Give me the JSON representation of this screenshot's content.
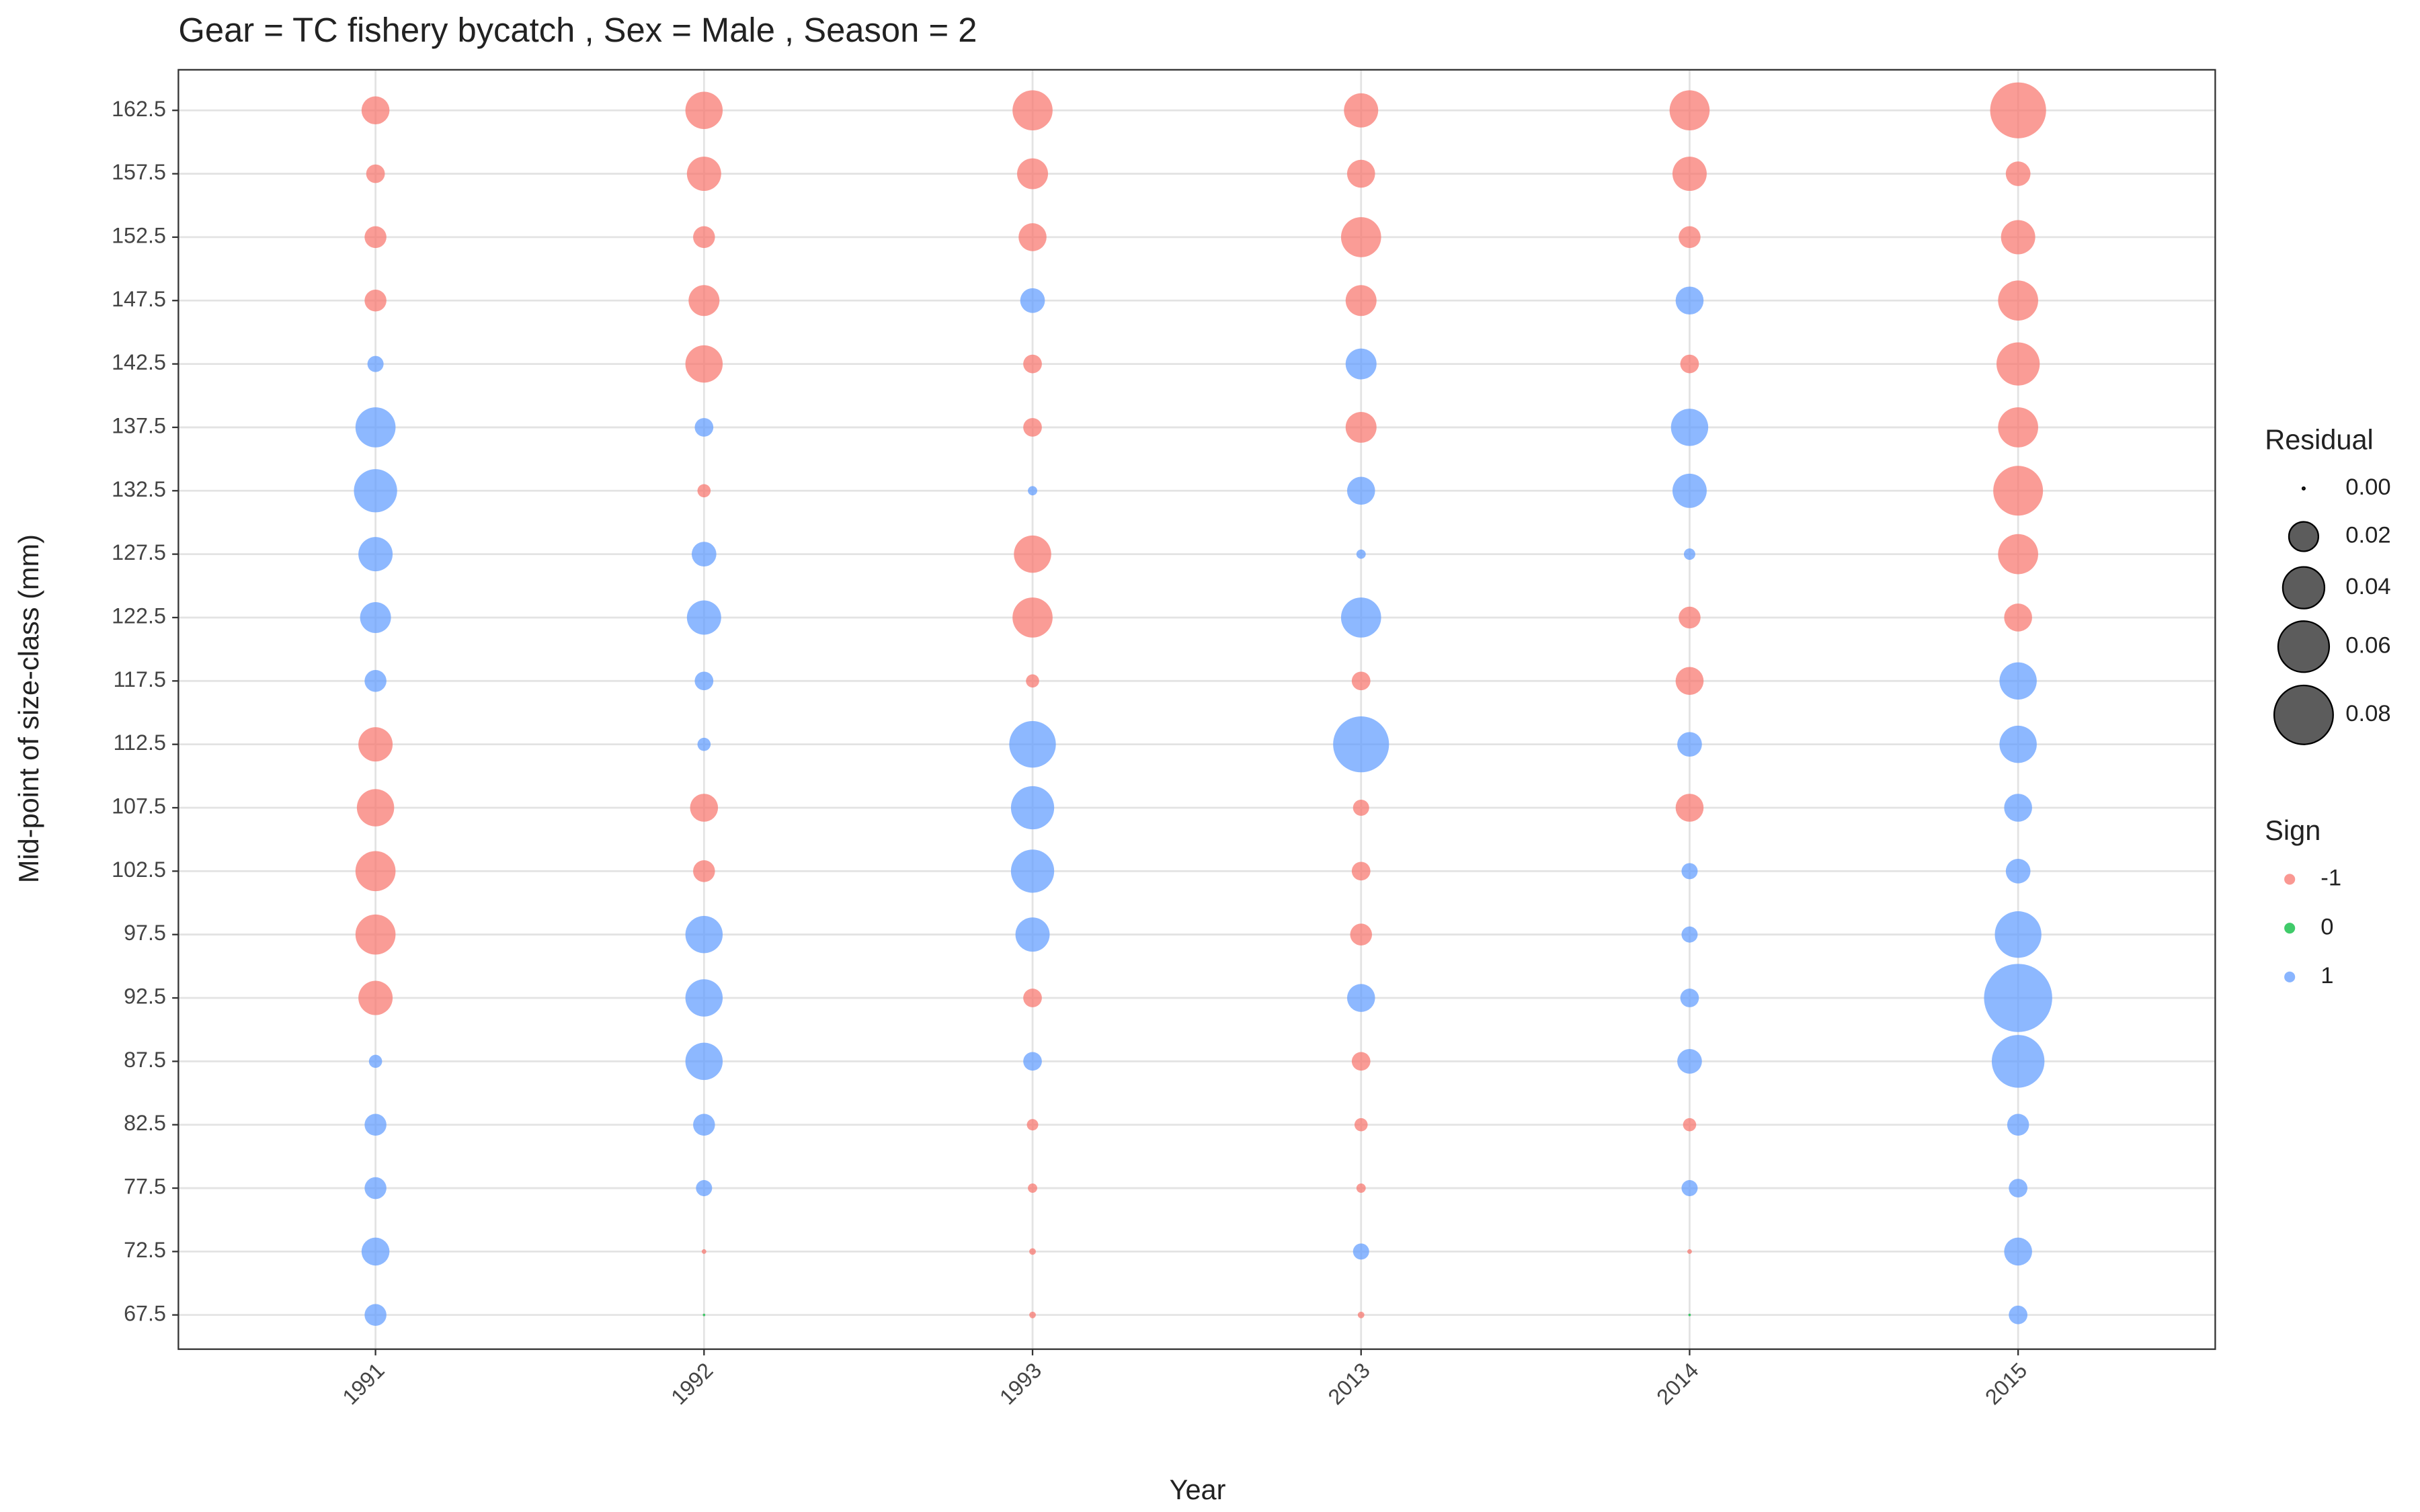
{
  "chart_data": {
    "type": "bubble",
    "title": "Gear = TC fishery bycatch , Sex = Male , Season = 2",
    "x_label": "Year",
    "y_label": "Mid-point of size-class (mm)",
    "categories": [
      "1991",
      "1992",
      "1993",
      "2013",
      "2014",
      "2015"
    ],
    "size_classes": [
      67.5,
      72.5,
      77.5,
      82.5,
      87.5,
      92.5,
      97.5,
      102.5,
      107.5,
      112.5,
      117.5,
      122.5,
      127.5,
      132.5,
      137.5,
      142.5,
      147.5,
      152.5,
      157.5,
      162.5
    ],
    "ylim": [
      64.8,
      165.7
    ],
    "yticks": [
      67.5,
      72.5,
      77.5,
      82.5,
      87.5,
      92.5,
      97.5,
      102.5,
      107.5,
      112.5,
      117.5,
      122.5,
      127.5,
      132.5,
      137.5,
      142.5,
      147.5,
      152.5,
      157.5,
      162.5
    ],
    "residuals": [
      [
        0.011,
        0.018,
        0.011,
        0.011,
        0.004,
        0.027,
        0.037,
        0.037,
        0.032,
        0.027,
        0.011,
        0.022,
        0.027,
        0.043,
        0.037,
        0.006,
        0.011,
        0.011,
        0.008,
        0.018
      ],
      [
        0,
        0.0005,
        0.006,
        0.011,
        0.032,
        0.032,
        0.032,
        0.011,
        0.018,
        0.004,
        0.008,
        0.027,
        0.014,
        0.004,
        0.008,
        0.032,
        0.022,
        0.011,
        0.027,
        0.032
      ],
      [
        0.001,
        0.001,
        0.002,
        0.003,
        0.008,
        0.008,
        0.027,
        0.043,
        0.043,
        0.05,
        0.004,
        0.037,
        0.032,
        0.002,
        0.008,
        0.008,
        0.014,
        0.018,
        0.022,
        0.037
      ],
      [
        0.001,
        0.006,
        0.002,
        0.004,
        0.008,
        0.018,
        0.011,
        0.008,
        0.006,
        0.072,
        0.008,
        0.037,
        0.002,
        0.018,
        0.022,
        0.022,
        0.022,
        0.037,
        0.018,
        0.027
      ],
      [
        0,
        0.0005,
        0.006,
        0.004,
        0.014,
        0.008,
        0.006,
        0.006,
        0.018,
        0.014,
        0.018,
        0.011,
        0.003,
        0.027,
        0.032,
        0.008,
        0.018,
        0.011,
        0.027,
        0.037
      ],
      [
        0.008,
        0.018,
        0.008,
        0.011,
        0.064,
        0.107,
        0.05,
        0.014,
        0.018,
        0.032,
        0.032,
        0.018,
        0.037,
        0.057,
        0.037,
        0.043,
        0.037,
        0.027,
        0.014,
        0.072
      ]
    ],
    "signs": [
      [
        1,
        1,
        1,
        1,
        1,
        -1,
        -1,
        -1,
        -1,
        -1,
        1,
        1,
        1,
        1,
        1,
        1,
        -1,
        -1,
        -1,
        -1
      ],
      [
        0,
        -1,
        1,
        1,
        1,
        1,
        1,
        -1,
        -1,
        1,
        1,
        1,
        1,
        -1,
        1,
        -1,
        -1,
        -1,
        -1,
        -1
      ],
      [
        -1,
        -1,
        -1,
        -1,
        1,
        -1,
        1,
        1,
        1,
        1,
        -1,
        -1,
        -1,
        1,
        -1,
        -1,
        1,
        -1,
        -1,
        -1
      ],
      [
        -1,
        1,
        -1,
        -1,
        -1,
        1,
        -1,
        -1,
        -1,
        1,
        -1,
        1,
        1,
        1,
        -1,
        1,
        -1,
        -1,
        -1,
        -1
      ],
      [
        0,
        -1,
        1,
        -1,
        1,
        1,
        1,
        1,
        -1,
        1,
        -1,
        -1,
        1,
        1,
        1,
        -1,
        1,
        -1,
        -1,
        -1
      ],
      [
        1,
        1,
        1,
        1,
        1,
        1,
        1,
        1,
        1,
        1,
        1,
        -1,
        -1,
        -1,
        -1,
        -1,
        -1,
        -1,
        -1,
        -1
      ]
    ],
    "size_legend": {
      "title": "Residual",
      "values": [
        {
          "value": 0,
          "label": "0.00"
        },
        {
          "value": 0.02,
          "label": "0.02"
        },
        {
          "value": 0.04,
          "label": "0.04"
        },
        {
          "value": 0.06,
          "label": "0.06"
        },
        {
          "value": 0.08,
          "label": "0.08"
        }
      ]
    },
    "sign_legend": {
      "title": "Sign",
      "entries": [
        {
          "value": -1,
          "color": "#F8766D"
        },
        {
          "value": 0,
          "color": "#00BA38"
        },
        {
          "value": 1,
          "color": "#619CFF"
        }
      ]
    },
    "grid": true
  }
}
